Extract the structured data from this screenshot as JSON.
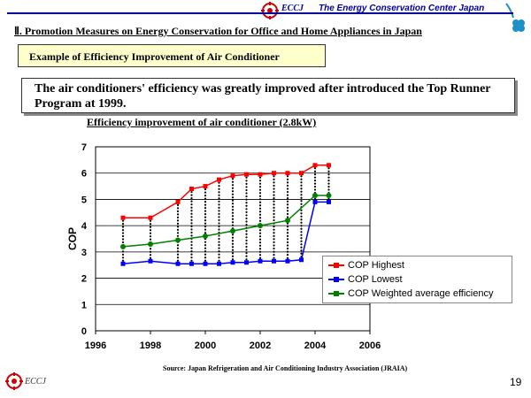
{
  "header": {
    "logo_text": "ECCJ",
    "org_name": "The Energy Conservation Center Japan",
    "section_title": "Ⅱ. Promotion Measures on Energy Conservation for Office and Home Appliances in Japan"
  },
  "example_label": "Example of Efficiency Improvement of Air Conditioner",
  "intro_text": "The air conditioners' efficiency was greatly improved after introduced the Top Runner Program at 1999.",
  "source": "Source: Japan Refrigeration and Air Conditioning Industry Association (JRAIA)",
  "footer": {
    "logo_text": "ECCJ",
    "page_number": "19"
  },
  "colors": {
    "highest": "#ff0000",
    "lowest": "#0000ff",
    "weighted": "#008000",
    "accent": "#0000a0"
  },
  "chart_data": {
    "type": "line",
    "title": "Efficiency improvement of air conditioner (2.8kW)",
    "xlabel": "",
    "ylabel": "COP",
    "xlim": [
      1996,
      2006
    ],
    "ylim": [
      0,
      7
    ],
    "xticks": [
      1996,
      1998,
      2000,
      2002,
      2004,
      2006
    ],
    "yticks": [
      0,
      1,
      2,
      3,
      4,
      5,
      6,
      7
    ],
    "grid": "horizontal",
    "legend_position": "bottom-right",
    "series": [
      {
        "name": "COP Highest",
        "color": "#ff0000",
        "x": [
          1997,
          1998,
          1999,
          1999.5,
          2000,
          2000.5,
          2001,
          2001.5,
          2002,
          2002.5,
          2003,
          2003.5,
          2004,
          2004.5
        ],
        "y": [
          4.3,
          4.3,
          4.9,
          5.4,
          5.5,
          5.75,
          5.9,
          5.95,
          5.95,
          6.0,
          6.0,
          6.0,
          6.3,
          6.3
        ]
      },
      {
        "name": "COP Lowest",
        "color": "#0000ff",
        "x": [
          1997,
          1998,
          1999,
          1999.5,
          2000,
          2000.5,
          2001,
          2001.5,
          2002,
          2002.5,
          2003,
          2003.5,
          2004,
          2004.5
        ],
        "y": [
          2.55,
          2.65,
          2.55,
          2.55,
          2.55,
          2.55,
          2.6,
          2.6,
          2.65,
          2.65,
          2.65,
          2.7,
          4.9,
          4.9
        ]
      },
      {
        "name": "COP Weighted average efficiency",
        "color": "#008000",
        "x": [
          1997,
          1998,
          1999,
          2000,
          2001,
          2002,
          2003,
          2004,
          2004.5
        ],
        "y": [
          3.2,
          3.3,
          3.45,
          3.6,
          3.8,
          4.0,
          4.2,
          5.15,
          5.15
        ]
      }
    ]
  }
}
